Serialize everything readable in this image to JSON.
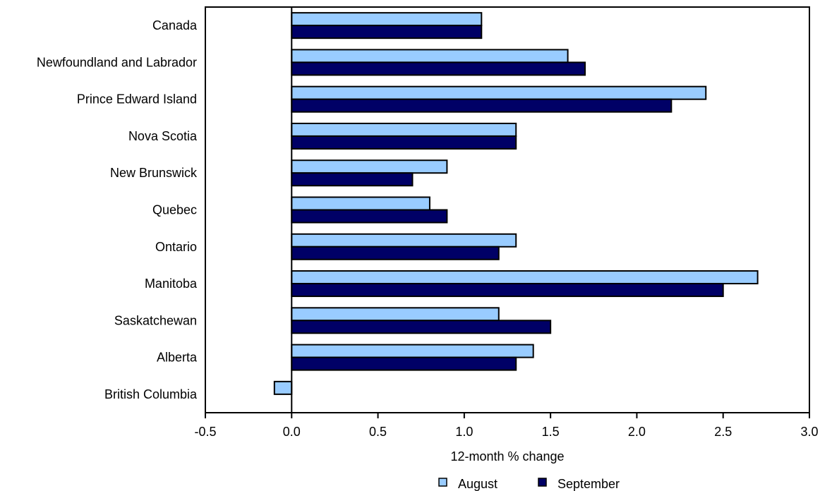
{
  "chart_data": {
    "type": "bar",
    "orientation": "horizontal",
    "categories": [
      "Canada",
      "Newfoundland and Labrador",
      "Prince Edward Island",
      "Nova Scotia",
      "New  Brunswick",
      "Quebec",
      "Ontario",
      "Manitoba",
      "Saskatchewan",
      "Alberta",
      "British Columbia"
    ],
    "series": [
      {
        "name": "August",
        "color": "#99ccff",
        "values": [
          1.1,
          1.6,
          2.4,
          1.3,
          0.9,
          0.8,
          1.3,
          2.7,
          1.2,
          1.4,
          -0.1
        ]
      },
      {
        "name": "September",
        "color": "#000066",
        "values": [
          1.1,
          1.7,
          2.2,
          1.3,
          0.7,
          0.9,
          1.2,
          2.5,
          1.5,
          1.3,
          0.0
        ]
      }
    ],
    "xlabel": "12-month % change",
    "xlim": [
      -0.5,
      3.0
    ],
    "xticks": [
      "-0.5",
      "0.0",
      "0.5",
      "1.0",
      "1.5",
      "2.0",
      "2.5",
      "3.0"
    ],
    "grid": false,
    "legend_position": "bottom"
  }
}
